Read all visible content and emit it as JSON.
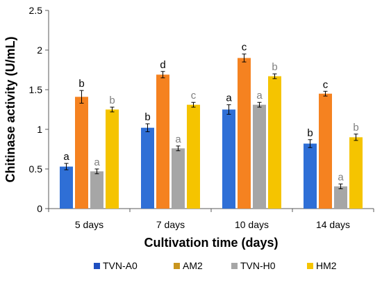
{
  "chart_data": {
    "type": "bar",
    "xlabel": "Cultivation time (days)",
    "ylabel": "Chitinase activity (U/mL)",
    "ylim": [
      0,
      2.5
    ],
    "yticks": [
      "0",
      "0.5",
      "1",
      "1.5",
      "2",
      "2.5"
    ],
    "categories": [
      "5 days",
      "7 days",
      "10 days",
      "14 days"
    ],
    "legend_position": "bottom",
    "series": [
      {
        "name": "TVN-A0",
        "color": "#2f6fd6",
        "values": [
          0.53,
          1.02,
          1.25,
          0.82
        ],
        "errors": [
          0.04,
          0.05,
          0.06,
          0.05
        ],
        "letters": [
          "a",
          "b",
          "a",
          "b"
        ]
      },
      {
        "name": "AM2",
        "color": "#f58220",
        "values": [
          1.41,
          1.69,
          1.9,
          1.45
        ],
        "errors": [
          0.08,
          0.04,
          0.05,
          0.03
        ],
        "letters": [
          "b",
          "d",
          "c",
          "c"
        ]
      },
      {
        "name": "TVN-H0",
        "color": "#a6a6a6",
        "values": [
          0.47,
          0.76,
          1.31,
          0.28
        ],
        "errors": [
          0.03,
          0.03,
          0.03,
          0.03
        ],
        "letters": [
          "a",
          "a",
          "a",
          "a"
        ]
      },
      {
        "name": "HM2",
        "color": "#f5c400",
        "values": [
          1.25,
          1.31,
          1.67,
          0.9
        ],
        "errors": [
          0.03,
          0.03,
          0.03,
          0.04
        ],
        "letters": [
          "b",
          "c",
          "b",
          "b"
        ]
      }
    ],
    "letter_colors": [
      "#000000",
      "#000000",
      "#7f7f7f",
      "#7f7f7f"
    ],
    "legend_marker_colors": [
      "#1f4fc0",
      "#c9951e",
      "#a6a6a6",
      "#f5c400"
    ]
  }
}
